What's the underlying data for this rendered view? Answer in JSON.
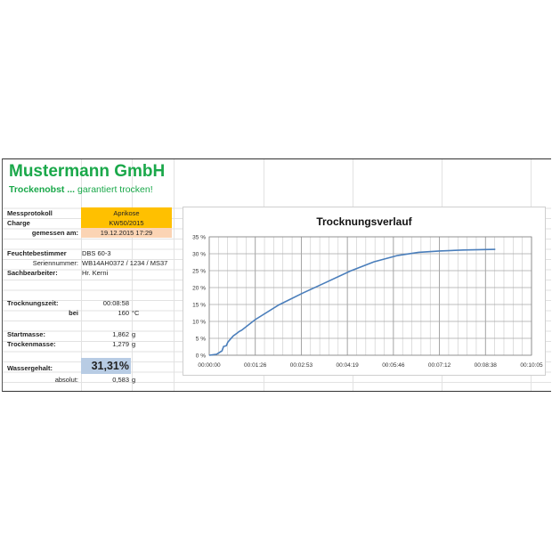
{
  "header": {
    "company": "Mustermann GmbH",
    "tagline_bold": "Trockenobst ...",
    "tagline_rest": " garantiert trocken!"
  },
  "fields": {
    "messprotokoll_label": "Messprotokoll",
    "messprotokoll_value": "Aprikose",
    "charge_label": "Charge",
    "charge_value": "KW50/2015",
    "gemessen_label": "gemessen am:",
    "gemessen_value": "19.12.2015 17:29",
    "feuchte_label": "Feuchtebestimmer",
    "feuchte_value": "DBS 60-3",
    "serien_label": "Seriennummer:",
    "serien_value": "WB14AH0372 / 1234 / MS37",
    "sachbearbeiter_label": "Sachbearbeiter:",
    "sachbearbeiter_value": "Hr. Kerni",
    "zeit_label": "Trocknungszeit:",
    "zeit_value": "00:08:58",
    "bei_label": "bei",
    "bei_value": "160",
    "bei_unit": "°C",
    "start_label": "Startmasse:",
    "start_value": "1,862",
    "start_unit": "g",
    "trocken_label": "Trockenmasse:",
    "trocken_value": "1,279",
    "trocken_unit": "g",
    "wasser_label": "Wassergehalt:",
    "wasser_value": "31,31%",
    "absolut_label": "absolut:",
    "absolut_value": "0,583",
    "absolut_unit": "g"
  },
  "colors": {
    "brand": "#1aa84a",
    "orange": "#ffc000",
    "peach": "#fbd4b4",
    "blue": "#b8cce4",
    "line": "#4a7ebb"
  },
  "chart_data": {
    "type": "line",
    "title": "Trocknungsverlauf",
    "xlabel": "",
    "ylabel": "",
    "xlim_seconds": [
      0,
      605
    ],
    "ylim": [
      0,
      35
    ],
    "grid": true,
    "x_ticks": [
      "00:00:00",
      "00:01:26",
      "00:02:53",
      "00:04:19",
      "00:05:46",
      "00:07:12",
      "00:08:38",
      "00:10:05"
    ],
    "y_ticks": [
      "0 %",
      "5 %",
      "10 %",
      "15 %",
      "20 %",
      "25 %",
      "30 %",
      "35 %"
    ],
    "x_time_hms": [
      "00:00:00",
      "00:00:14",
      "00:00:24",
      "00:00:27",
      "00:00:32",
      "00:00:35",
      "00:00:45",
      "00:00:53",
      "00:00:56",
      "00:01:01",
      "00:01:26",
      "00:02:11",
      "00:02:56",
      "00:03:40",
      "00:04:25",
      "00:05:09",
      "00:05:54",
      "00:06:33",
      "00:07:12",
      "00:07:57",
      "00:08:57"
    ],
    "y_percent": [
      0,
      0.3,
      1.3,
      2.6,
      2.8,
      3.9,
      5.7,
      6.6,
      7.0,
      7.4,
      10.5,
      14.9,
      18.4,
      21.6,
      24.9,
      27.6,
      29.5,
      30.4,
      30.8,
      31.1,
      31.3
    ]
  }
}
